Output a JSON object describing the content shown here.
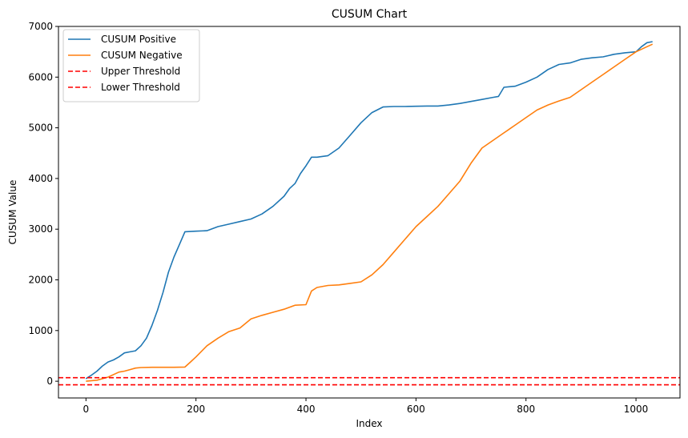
{
  "chart_data": {
    "type": "line",
    "title": "CUSUM Chart",
    "xlabel": "Index",
    "ylabel": "CUSUM Value",
    "xlim": [
      -50,
      1080
    ],
    "ylim": [
      -330,
      7000
    ],
    "x_ticks": [
      0,
      200,
      400,
      600,
      800,
      1000
    ],
    "y_ticks": [
      0,
      1000,
      2000,
      3000,
      4000,
      5000,
      6000,
      7000
    ],
    "grid": false,
    "legend_position": "top-left",
    "series": [
      {
        "name": "CUSUM Positive",
        "color": "#1f77b4",
        "style": "solid",
        "x": [
          0,
          10,
          20,
          30,
          40,
          50,
          60,
          70,
          80,
          90,
          100,
          110,
          120,
          130,
          140,
          150,
          160,
          170,
          180,
          200,
          220,
          240,
          260,
          280,
          300,
          320,
          340,
          360,
          370,
          380,
          390,
          400,
          410,
          420,
          440,
          460,
          480,
          500,
          520,
          540,
          560,
          580,
          600,
          620,
          640,
          660,
          680,
          700,
          720,
          740,
          750,
          760,
          780,
          800,
          820,
          840,
          860,
          880,
          900,
          920,
          940,
          960,
          980,
          1000,
          1010,
          1020,
          1030
        ],
        "y": [
          50,
          120,
          200,
          300,
          380,
          420,
          480,
          560,
          580,
          600,
          700,
          850,
          1100,
          1400,
          1750,
          2150,
          2450,
          2700,
          2950,
          2960,
          2970,
          3050,
          3100,
          3150,
          3200,
          3300,
          3450,
          3650,
          3800,
          3900,
          4100,
          4250,
          4420,
          4420,
          4450,
          4600,
          4850,
          5100,
          5300,
          5410,
          5420,
          5420,
          5425,
          5430,
          5430,
          5450,
          5480,
          5520,
          5560,
          5600,
          5620,
          5800,
          5820,
          5900,
          6000,
          6150,
          6250,
          6280,
          6350,
          6380,
          6400,
          6450,
          6480,
          6500,
          6600,
          6680,
          6700
        ]
      },
      {
        "name": "CUSUM Negative",
        "color": "#ff7f0e",
        "style": "solid",
        "x": [
          0,
          20,
          40,
          60,
          70,
          80,
          90,
          100,
          120,
          140,
          160,
          180,
          190,
          200,
          220,
          240,
          260,
          280,
          300,
          320,
          340,
          360,
          380,
          400,
          410,
          420,
          440,
          460,
          480,
          500,
          520,
          540,
          560,
          580,
          600,
          620,
          640,
          660,
          680,
          700,
          720,
          740,
          760,
          780,
          800,
          820,
          840,
          860,
          880,
          900,
          920,
          940,
          960,
          980,
          1000,
          1020,
          1030
        ],
        "y": [
          0,
          20,
          80,
          180,
          200,
          230,
          260,
          270,
          275,
          275,
          275,
          280,
          380,
          480,
          700,
          850,
          980,
          1050,
          1230,
          1300,
          1360,
          1420,
          1500,
          1510,
          1780,
          1850,
          1890,
          1900,
          1930,
          1960,
          2100,
          2300,
          2550,
          2800,
          3050,
          3250,
          3450,
          3700,
          3950,
          4300,
          4600,
          4750,
          4900,
          5050,
          5200,
          5350,
          5450,
          5530,
          5600,
          5750,
          5900,
          6050,
          6200,
          6350,
          6500,
          6600,
          6650
        ]
      },
      {
        "name": "Upper Threshold",
        "color": "#ff0000",
        "style": "dashed",
        "y_constant": 70
      },
      {
        "name": "Lower Threshold",
        "color": "#ff0000",
        "style": "dashed",
        "y_constant": -70
      }
    ]
  }
}
